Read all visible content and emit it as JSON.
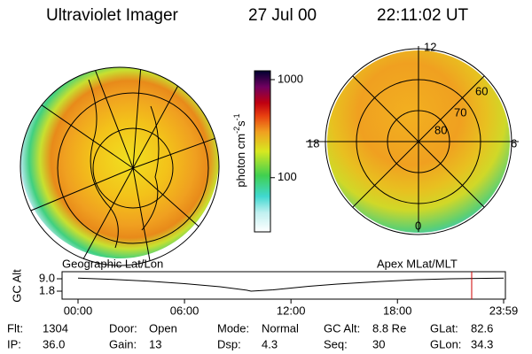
{
  "header": {
    "title": "Ultraviolet Imager",
    "date": "27 Jul 00",
    "time": "22:11:02 UT"
  },
  "colorbar": {
    "unit": "photon cm",
    "exp1": "-2",
    "unit2": "s",
    "exp2": "-1",
    "scale": "log",
    "lim": [
      28,
      1230
    ],
    "ticks": [
      100,
      1000
    ]
  },
  "left_panel": {
    "label": "Geographic Lat/Lon"
  },
  "right_panel": {
    "label": "Apex MLat/MLT",
    "hours": [
      "12",
      "18",
      "6",
      "0"
    ],
    "lats": [
      "60",
      "70",
      "80"
    ]
  },
  "altitude_plot": {
    "ylabel": "GC Alt",
    "yticks": [
      {
        "value": 9.0,
        "label": "9.0"
      },
      {
        "value": 1.8,
        "label": "1.8"
      }
    ],
    "xlim": [
      0,
      1439
    ],
    "xticks": [
      {
        "value": 0,
        "label": "00:00"
      },
      {
        "value": 360,
        "label": "06:00"
      },
      {
        "value": 720,
        "label": "12:00"
      },
      {
        "value": 1080,
        "label": "18:00"
      },
      {
        "value": 1439,
        "label": "23:59"
      }
    ],
    "x": [
      0,
      120,
      240,
      360,
      480,
      570,
      585,
      660,
      780,
      900,
      1020,
      1140,
      1260,
      1439
    ],
    "values": [
      9.4,
      8.6,
      7.6,
      6.2,
      4.4,
      2.4,
      1.8,
      2.6,
      4.6,
      6.2,
      7.4,
      8.4,
      9.0,
      9.4
    ],
    "current": 1331,
    "marker_color": "#d00000"
  },
  "footer": [
    [
      {
        "label": "Flt:",
        "value": "1304"
      },
      {
        "label": "IP:",
        "value": "36.0"
      }
    ],
    [
      {
        "label": "Door:",
        "value": "Open"
      },
      {
        "label": "Gain:",
        "value": "13"
      }
    ],
    [
      {
        "label": "Mode:",
        "value": "Normal"
      },
      {
        "label": "Dsp:",
        "value": "4.3"
      }
    ],
    [
      {
        "label": "GC Alt:",
        "value": "8.8 Re"
      },
      {
        "label": "Seq:",
        "value": "30"
      }
    ],
    [
      {
        "label": "GLat:",
        "value": "82.6"
      },
      {
        "label": "GLon:",
        "value": "34.3"
      }
    ]
  ]
}
